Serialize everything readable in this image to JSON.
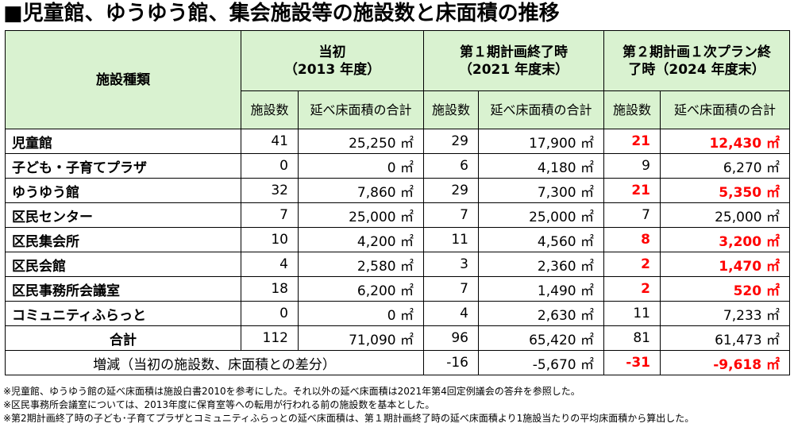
{
  "title": "■児童館、ゆうゆう館、集会施設等の施設数と床面積の推移",
  "header": {
    "facility_type": "施設種類",
    "period_initial": "当初",
    "period_initial_year": "（2013 年度）",
    "period_phase1": "第１期計画終了時",
    "period_phase1_year": "（2021 年度末）",
    "period_phase2": "第２期計画１次プラン終",
    "period_phase2_year": "了時（2024 年度末）",
    "count_label": "施設数",
    "area_label": "延べ床面積の合計"
  },
  "rows": [
    {
      "name": "児童館",
      "c0": "41",
      "a0": "25,250 ㎡",
      "c1": "29",
      "a1": "17,900 ㎡",
      "c2": "21",
      "a2": "12,430 ㎡",
      "red": true
    },
    {
      "name": "子ども・子育てプラザ",
      "c0": "0",
      "a0": "0 ㎡",
      "c1": "6",
      "a1": "4,180 ㎡",
      "c2": "9",
      "a2": "6,270 ㎡",
      "red": false
    },
    {
      "name": "ゆうゆう館",
      "c0": "32",
      "a0": "7,860 ㎡",
      "c1": "29",
      "a1": "7,300 ㎡",
      "c2": "21",
      "a2": "5,350 ㎡",
      "red": true
    },
    {
      "name": "区民センター",
      "c0": "7",
      "a0": "25,000 ㎡",
      "c1": "7",
      "a1": "25,000 ㎡",
      "c2": "7",
      "a2": "25,000 ㎡",
      "red": false
    },
    {
      "name": "区民集会所",
      "c0": "10",
      "a0": "4,200 ㎡",
      "c1": "11",
      "a1": "4,560 ㎡",
      "c2": "8",
      "a2": "3,200 ㎡",
      "red": true
    },
    {
      "name": "区民会館",
      "c0": "4",
      "a0": "2,580 ㎡",
      "c1": "3",
      "a1": "2,360 ㎡",
      "c2": "2",
      "a2": "1,470 ㎡",
      "red": true
    },
    {
      "name": "区民事務所会議室",
      "c0": "18",
      "a0": "6,200 ㎡",
      "c1": "7",
      "a1": "1,490 ㎡",
      "c2": "2",
      "a2": "520 ㎡",
      "red": true
    },
    {
      "name": "コミュニティふらっと",
      "c0": "0",
      "a0": "0 ㎡",
      "c1": "4",
      "a1": "2,630 ㎡",
      "c2": "11",
      "a2": "7,233 ㎡",
      "red": false
    }
  ],
  "total": {
    "label": "合計",
    "c0": "112",
    "a0": "71,090 ㎡",
    "c1": "96",
    "a1": "65,420 ㎡",
    "c2": "81",
    "a2": "61,473 ㎡"
  },
  "diff": {
    "label": "増減（当初の施設数、床面積との差分）",
    "c1": "-16",
    "a1": "-5,670 ㎡",
    "c2": "-31",
    "a2": "-9,618 ㎡"
  },
  "notes": [
    "※児童館、ゆうゆう館の延べ床面積は施設白書2010を参考にした。それ以外の延べ床面積は2021年第4回定例議会の答弁を参照した。",
    "※区民事務所会議室については、2013年度に保育室等への転用が行われる前の施設数を基本とした。",
    "※第2期計画終了時の子ども･子育てプラザとコミュニティふらっとの延べ床面積は、第１期計画終了時の延べ床面積より1施設当たりの平均床面積から算出した。"
  ],
  "colors": {
    "header_bg": "#d9f2d0",
    "highlight": "#ff0000"
  }
}
